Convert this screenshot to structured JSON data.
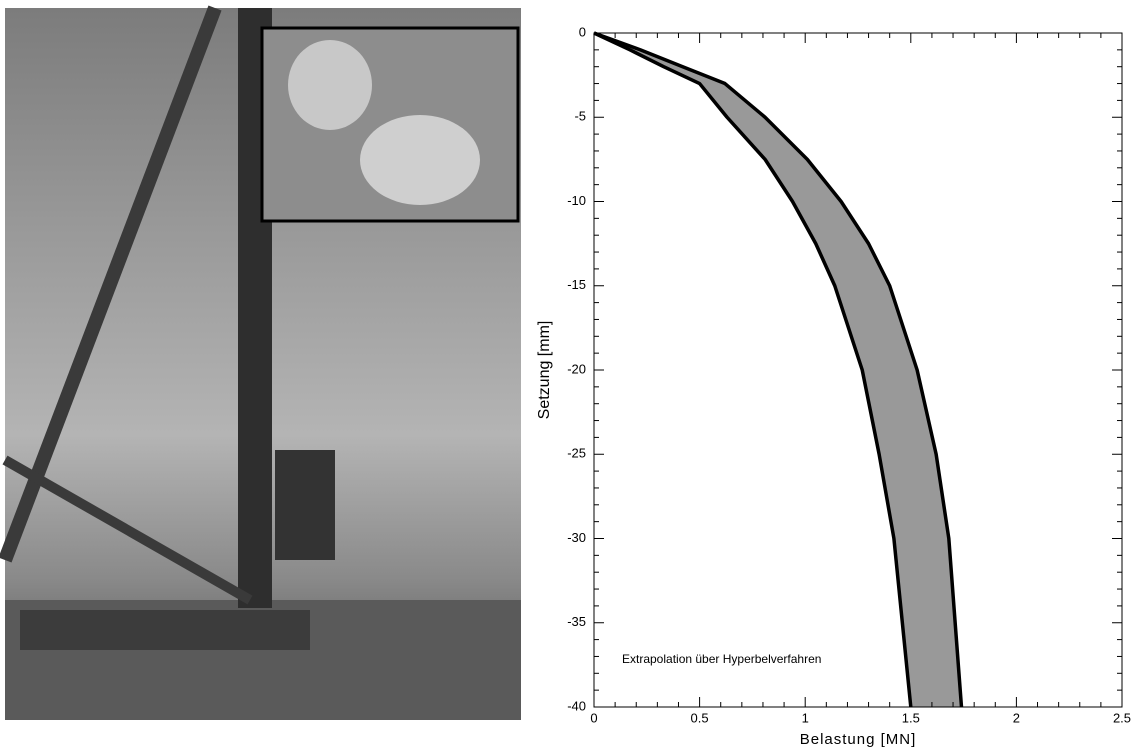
{
  "chart_data": {
    "type": "band",
    "y_label": "Setzung [mm]",
    "x_label": "Belastung [MN]",
    "annotation": "Extrapolation über Hyperbelverfahren",
    "y": [
      0,
      -1,
      -2,
      -3,
      -5,
      -7.5,
      -10,
      -12.5,
      -15,
      -20,
      -25,
      -30,
      -35,
      -40
    ],
    "series": [
      {
        "color": "#000000",
        "values": [
          0,
          0.17,
          0.33,
          0.5,
          0.63,
          0.81,
          0.94,
          1.05,
          1.14,
          1.27,
          1.35,
          1.42,
          1.46,
          1.5
        ]
      },
      {
        "color": "#000000",
        "values": [
          0,
          0.22,
          0.42,
          0.62,
          0.81,
          1.01,
          1.17,
          1.3,
          1.4,
          1.53,
          1.62,
          1.68,
          1.71,
          1.74
        ]
      }
    ],
    "fill_color": "#999999",
    "xlim": [
      0,
      2.5
    ],
    "ylim": [
      -40,
      0
    ],
    "xticks": [
      0,
      0.5,
      1,
      1.5,
      2,
      2.5
    ],
    "yticks": [
      0,
      -5,
      -10,
      -15,
      -20,
      -25,
      -30,
      -35,
      -40
    ],
    "minor_divisions": 5
  }
}
